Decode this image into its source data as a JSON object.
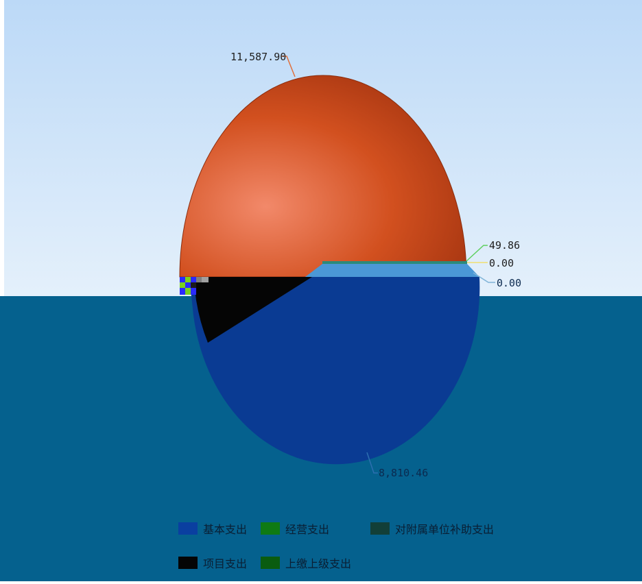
{
  "chart_data": {
    "type": "pie",
    "categories": [
      "基本支出",
      "项目支出",
      "经营支出",
      "上缴上级支出",
      "对附属单位补助支出"
    ],
    "data_labels": [
      "8,810.46",
      "11,587.90",
      "49.86",
      "0.00",
      "0.00"
    ],
    "values": [
      8810.46,
      11587.9,
      49.86,
      0.0,
      0.0
    ],
    "colors": [
      "#0a3fa0",
      "#ce4a1c",
      "#1c7a1c",
      "#0b5a0b",
      "#19483c"
    ],
    "legend": {
      "placement": "bottom",
      "items": [
        {
          "label": "基本支出",
          "color": "#0a3fa0"
        },
        {
          "label": "经营支出",
          "color": "#0f7a14"
        },
        {
          "label": "对附属单位补助支出",
          "color": "#123f38"
        },
        {
          "label": "项目支出",
          "color": "#050505"
        },
        {
          "label": "上缴上级支出",
          "color": "#0a5c10"
        }
      ]
    },
    "title": "",
    "grid": false
  }
}
